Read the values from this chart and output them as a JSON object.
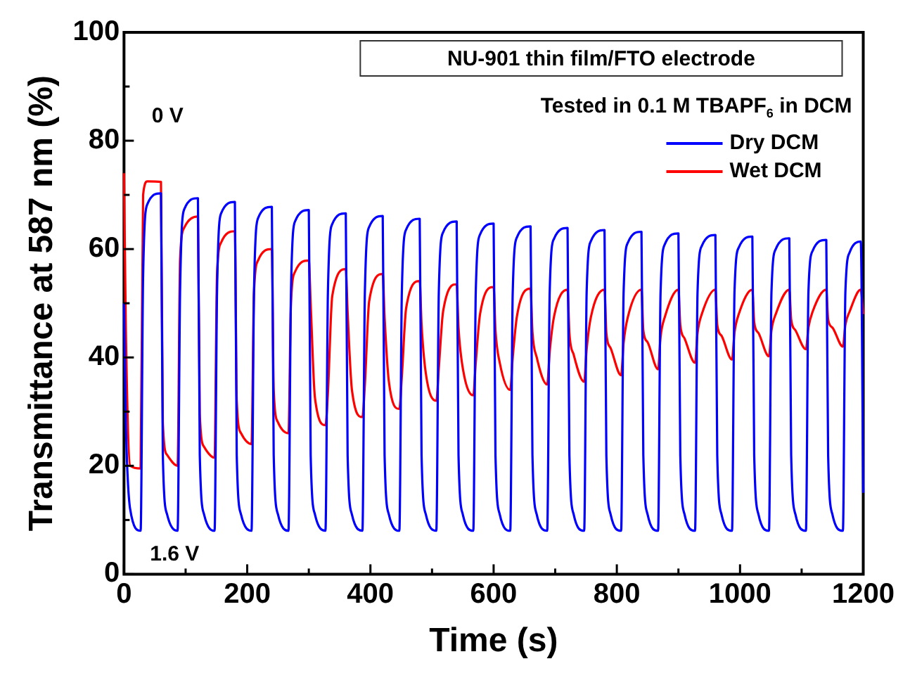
{
  "chart_data": {
    "type": "line",
    "title": "NU-901 thin film/FTO electrode",
    "subtitle": "Tested in 0.1 M TBAPF$_{6}$ in DCM",
    "xlabel": "Time (s)",
    "ylabel": "Transmittance at 587 nm (%)",
    "x": [
      0,
      3,
      10,
      27,
      31,
      38,
      60,
      63,
      70,
      87,
      91,
      98,
      120,
      123,
      130,
      147,
      151,
      158,
      180,
      183,
      190,
      207,
      211,
      218,
      240,
      243,
      250,
      267,
      271,
      278,
      300,
      303,
      310,
      327,
      331,
      338,
      360,
      363,
      370,
      387,
      391,
      398,
      420,
      423,
      430,
      447,
      451,
      458,
      480,
      483,
      490,
      507,
      511,
      518,
      540,
      543,
      550,
      567,
      571,
      578,
      600,
      603,
      610,
      627,
      631,
      638,
      660,
      663,
      670,
      687,
      691,
      698,
      720,
      723,
      730,
      747,
      751,
      758,
      780,
      783,
      790,
      807,
      811,
      818,
      840,
      843,
      850,
      867,
      871,
      878,
      900,
      903,
      910,
      927,
      931,
      938,
      960,
      963,
      970,
      987,
      991,
      998,
      1020,
      1023,
      1030,
      1047,
      1051,
      1058,
      1080,
      1083,
      1090,
      1107,
      1111,
      1118,
      1140,
      1143,
      1150,
      1167,
      1171,
      1178,
      1196,
      1200
    ],
    "series": [
      {
        "name": "Dry DCM",
        "color": "#0000ff",
        "values": [
          50,
          28,
          12,
          8,
          55,
          68.3,
          70.3,
          22,
          11,
          8,
          52,
          67.4,
          69.4,
          22,
          11,
          8,
          52,
          66.7,
          68.7,
          22,
          11,
          8,
          52,
          65.8,
          67.8,
          22,
          11,
          8,
          52,
          65.2,
          67.2,
          22,
          11,
          8,
          52,
          64.6,
          66.6,
          22,
          11,
          8,
          52,
          64.1,
          66.1,
          22,
          11,
          8,
          52,
          63.6,
          65.6,
          22,
          11,
          8,
          52,
          63.1,
          65.1,
          22,
          11,
          8,
          52,
          62.7,
          64.7,
          22,
          11,
          8,
          52,
          62.2,
          64.2,
          22,
          11,
          8,
          52,
          61.9,
          63.9,
          22,
          11,
          8,
          52,
          61.5,
          63.5,
          22,
          11,
          8,
          52,
          61.2,
          63.2,
          22,
          11,
          8,
          52,
          60.9,
          62.9,
          22,
          11,
          8,
          52,
          60.6,
          62.6,
          22,
          11,
          8,
          52,
          60.3,
          62.3,
          22,
          11,
          8,
          52,
          60,
          62,
          22,
          11,
          8,
          52,
          59.7,
          61.7,
          22,
          11,
          8,
          52,
          59.4,
          61.4,
          15
        ]
      },
      {
        "name": "Wet DCM",
        "color": "#ff0000",
        "values": [
          74,
          45,
          20,
          19.5,
          70,
          72.5,
          72.4,
          28,
          22,
          20,
          58,
          64,
          66,
          29.5,
          23.5,
          21.5,
          55.3,
          61.3,
          63.3,
          32,
          26,
          24,
          52,
          58,
          60,
          34,
          28,
          26,
          49.9,
          55.9,
          57.9,
          49.9,
          32.5,
          27.5,
          33.5,
          51.3,
          56.3,
          48.3,
          34,
          29,
          35,
          50.4,
          55.4,
          47.4,
          35.5,
          30.5,
          36.5,
          49.1,
          54.1,
          46.1,
          37,
          32,
          38,
          48.5,
          53.5,
          45.5,
          38,
          33,
          39,
          48,
          53,
          45,
          39,
          34,
          40,
          47.7,
          52.7,
          44.7,
          40,
          35,
          41,
          47.5,
          52.5,
          44.5,
          40.5,
          35.5,
          41.5,
          47.5,
          52.5,
          44.5,
          41.7,
          36.7,
          42.7,
          47.5,
          52.5,
          45,
          42.8,
          37.8,
          43.8,
          47.5,
          52.5,
          46,
          43.5,
          39,
          44.5,
          48,
          52.5,
          46,
          44,
          39.6,
          44.6,
          48,
          52.5,
          46.5,
          44.5,
          40.2,
          45,
          48,
          52.5,
          47,
          45,
          41.5,
          45.5,
          48.5,
          52.5,
          47,
          45.5,
          42,
          46,
          48.5,
          52.5,
          48
        ]
      }
    ],
    "xlim": [
      0,
      1200
    ],
    "xticks": [
      0,
      {
        "value": 100,
        "label": null
      },
      200,
      {
        "value": 300,
        "label": null
      },
      400,
      {
        "value": 500,
        "label": null
      },
      600,
      {
        "value": 700,
        "label": null
      },
      800,
      {
        "value": 900,
        "label": null
      },
      1000,
      {
        "value": 1100,
        "label": null
      },
      1200
    ],
    "ylim": [
      0,
      100
    ],
    "yticks": [
      0,
      {
        "value": 10,
        "label": null
      },
      20,
      {
        "value": 30,
        "label": null
      },
      40,
      {
        "value": 50,
        "label": null
      },
      60,
      {
        "value": 70,
        "label": null
      },
      80,
      {
        "value": 90,
        "label": null
      },
      100
    ],
    "annotations": [
      "0 V",
      "1.6 V"
    ],
    "grid": false,
    "legend": "top right",
    "marker": "none",
    "line_style": "solid"
  }
}
